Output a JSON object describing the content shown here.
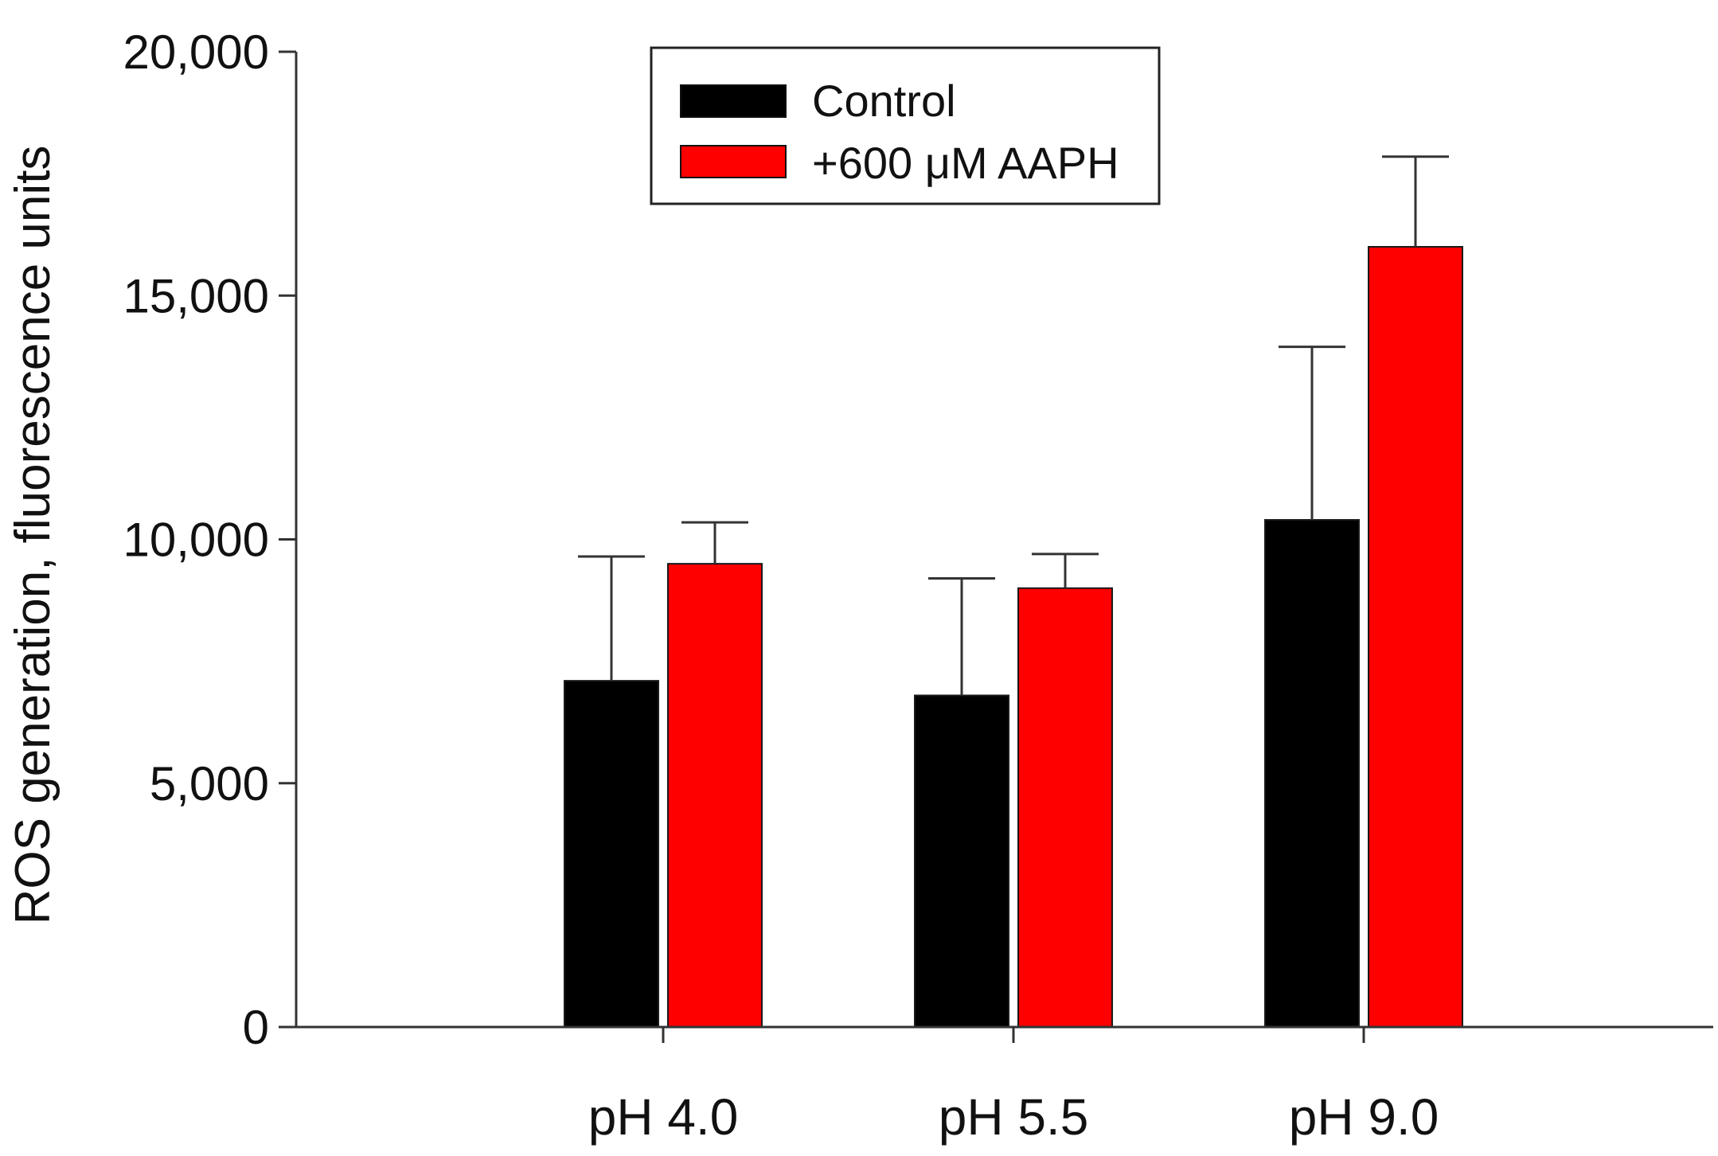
{
  "chart_data": {
    "type": "bar",
    "title": "",
    "xlabel": "",
    "ylabel": "ROS generation, fluorescence units",
    "categories": [
      "pH 4.0",
      "pH 5.5",
      "pH 9.0"
    ],
    "ylim": [
      0,
      20000
    ],
    "yticks": [
      0,
      5000,
      10000,
      15000,
      20000
    ],
    "ytick_labels": [
      "0",
      "5,000",
      "10,000",
      "15,000",
      "20,000"
    ],
    "grid": false,
    "legend_position": "top-center",
    "series": [
      {
        "name": "Control",
        "color": "#000000",
        "values": [
          7100,
          6800,
          10400
        ],
        "errors": [
          2550,
          2400,
          3550
        ]
      },
      {
        "name": "+600 μM AAPH",
        "color": "#ff0000",
        "values": [
          9500,
          9000,
          16000
        ],
        "errors": [
          850,
          700,
          1850
        ]
      }
    ]
  }
}
